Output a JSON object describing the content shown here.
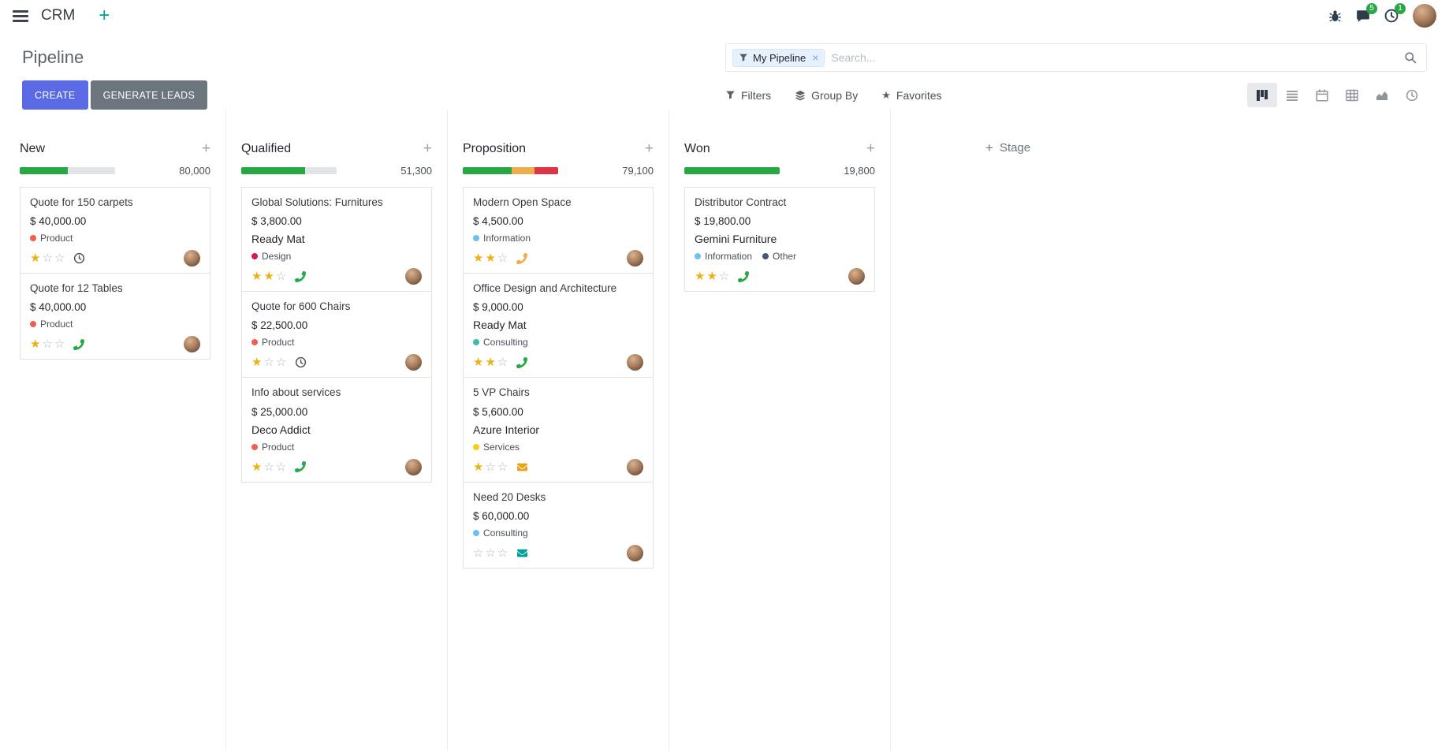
{
  "colors": {
    "primary": "#5a6ae4",
    "secondary": "#6c757d",
    "success": "#28a745",
    "warning": "#f0ad4e",
    "danger": "#dc3545",
    "teal": "#00a09d",
    "star_gold": "#edb112"
  },
  "topbar": {
    "app_name": "CRM",
    "messages_badge": "5",
    "activities_badge": "1"
  },
  "control_panel": {
    "title": "Pipeline",
    "create_label": "CREATE",
    "generate_leads_label": "GENERATE LEADS",
    "filters_label": "Filters",
    "group_by_label": "Group By",
    "favorites_label": "Favorites",
    "search": {
      "facet": "My Pipeline",
      "placeholder": "Search..."
    }
  },
  "kanban": {
    "add_stage_label": "Stage",
    "columns": [
      {
        "name": "New",
        "total": "80,000",
        "progress": [
          {
            "color": "#28a745",
            "pct": 50
          }
        ],
        "cards": [
          {
            "title": "Quote for 150 carpets",
            "amount": "$ 40,000.00",
            "tags": [
              {
                "label": "Product",
                "color": "#f06050"
              }
            ],
            "stars": 1,
            "activity": {
              "icon": "clock",
              "color": "#495057"
            }
          },
          {
            "title": "Quote for 12 Tables",
            "amount": "$ 40,000.00",
            "tags": [
              {
                "label": "Product",
                "color": "#f06050"
              }
            ],
            "stars": 1,
            "activity": {
              "icon": "phone",
              "color": "#28a745"
            }
          }
        ]
      },
      {
        "name": "Qualified",
        "total": "51,300",
        "progress": [
          {
            "color": "#28a745",
            "pct": 67
          }
        ],
        "cards": [
          {
            "title": "Global Solutions: Furnitures",
            "amount": "$ 3,800.00",
            "partner": "Ready Mat",
            "tags": [
              {
                "label": "Design",
                "color": "#d6145f"
              }
            ],
            "stars": 2,
            "activity": {
              "icon": "phone",
              "color": "#28a745"
            }
          },
          {
            "title": "Quote for 600 Chairs",
            "amount": "$ 22,500.00",
            "tags": [
              {
                "label": "Product",
                "color": "#f06050"
              }
            ],
            "stars": 1,
            "activity": {
              "icon": "clock",
              "color": "#495057"
            }
          },
          {
            "title": "Info about services",
            "amount": "$ 25,000.00",
            "partner": "Deco Addict",
            "tags": [
              {
                "label": "Product",
                "color": "#f06050"
              }
            ],
            "stars": 1,
            "activity": {
              "icon": "phone",
              "color": "#28a745"
            }
          }
        ]
      },
      {
        "name": "Proposition",
        "total": "79,100",
        "progress": [
          {
            "color": "#28a745",
            "pct": 51
          },
          {
            "color": "#f0ad4e",
            "pct": 24
          },
          {
            "color": "#dc3545",
            "pct": 25
          }
        ],
        "cards": [
          {
            "title": "Modern Open Space",
            "amount": "$ 4,500.00",
            "tags": [
              {
                "label": "Information",
                "color": "#6cc1ed"
              }
            ],
            "stars": 2,
            "activity": {
              "icon": "phone",
              "color": "#f0ad4e"
            }
          },
          {
            "title": "Office Design and Architecture",
            "amount": "$ 9,000.00",
            "partner": "Ready Mat",
            "tags": [
              {
                "label": "Consulting",
                "color": "#3bbdaa"
              }
            ],
            "stars": 2,
            "activity": {
              "icon": "phone",
              "color": "#28a745"
            }
          },
          {
            "title": "5 VP Chairs",
            "amount": "$ 5,600.00",
            "partner": "Azure Interior",
            "tags": [
              {
                "label": "Services",
                "color": "#f7cd1f"
              }
            ],
            "stars": 1,
            "activity": {
              "icon": "envelope",
              "color": "#eaa220"
            }
          },
          {
            "title": "Need 20 Desks",
            "amount": "$ 60,000.00",
            "tags": [
              {
                "label": "Consulting",
                "color": "#6cc1ed"
              }
            ],
            "stars": 0,
            "activity": {
              "icon": "envelope",
              "color": "#00a09d"
            }
          }
        ]
      },
      {
        "name": "Won",
        "total": "19,800",
        "progress": [
          {
            "color": "#28a745",
            "pct": 100
          }
        ],
        "cards": [
          {
            "title": "Distributor Contract",
            "amount": "$ 19,800.00",
            "partner": "Gemini Furniture",
            "tags": [
              {
                "label": "Information",
                "color": "#6cc1ed"
              },
              {
                "label": "Other",
                "color": "#475577"
              }
            ],
            "stars": 2,
            "activity": {
              "icon": "phone",
              "color": "#28a745"
            }
          }
        ]
      }
    ]
  }
}
